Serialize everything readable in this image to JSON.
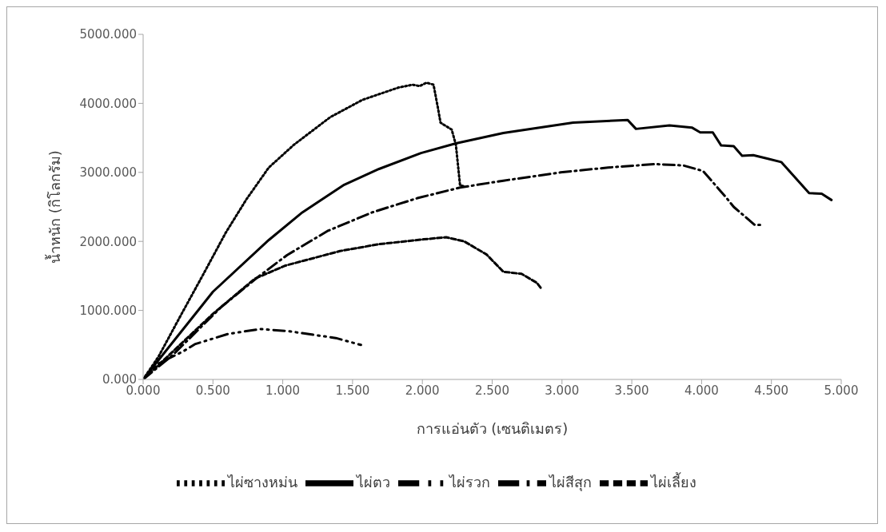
{
  "chart_data": {
    "type": "line",
    "xlabel": "การแอ่นตัว (เซนติเมตร)",
    "ylabel": "น้ำหนัก (กิโลกรัม)",
    "xlim": [
      0,
      5
    ],
    "xticks": [
      {
        "value": 0,
        "label": "0.000"
      },
      {
        "value": 0.5,
        "label": "0.500"
      },
      {
        "value": 1,
        "label": "1.000"
      },
      {
        "value": 1.5,
        "label": "1.500"
      },
      {
        "value": 2,
        "label": "2.000"
      },
      {
        "value": 2.5,
        "label": "2.500"
      },
      {
        "value": 3,
        "label": "3.000"
      },
      {
        "value": 3.5,
        "label": "3.500"
      },
      {
        "value": 4,
        "label": "4.000"
      },
      {
        "value": 4.5,
        "label": "4.500"
      },
      {
        "value": 5,
        "label": "5.000"
      }
    ],
    "ylim": [
      0,
      5000
    ],
    "yticks": [
      {
        "value": 0,
        "label": "0.000"
      },
      {
        "value": 1000,
        "label": "1000.000"
      },
      {
        "value": 2000,
        "label": "2000.000"
      },
      {
        "value": 3000,
        "label": "3000.000"
      },
      {
        "value": 4000,
        "label": "4000.000"
      },
      {
        "value": 5000,
        "label": "5000.000"
      }
    ],
    "grid": false,
    "legend": "bottom",
    "marker": "none",
    "series": [
      {
        "name": "ไผ่ตว",
        "color": "#000000",
        "line_style": "solid",
        "x": [
          0,
          0.5,
          0.9,
          1.14,
          1.44,
          1.69,
          1.99,
          2.24,
          2.58,
          3.08,
          3.47,
          3.53,
          3.77,
          3.93,
          3.99,
          4.08,
          4.14,
          4.23,
          4.29,
          4.37,
          4.47,
          4.57,
          4.77,
          4.86,
          4.93
        ],
        "values": [
          0,
          1270,
          2020,
          2420,
          2820,
          3050,
          3280,
          3420,
          3570,
          3720,
          3760,
          3630,
          3680,
          3650,
          3580,
          3580,
          3390,
          3380,
          3240,
          3250,
          3200,
          3150,
          2700,
          2690,
          2600
        ]
      },
      {
        "name": "ไผ่ซางหม่น",
        "color": "#000000",
        "line_style": "dotted",
        "x": [
          0,
          0.11,
          0.27,
          0.43,
          0.59,
          0.74,
          0.9,
          1.08,
          1.34,
          1.57,
          1.83,
          1.93,
          1.98,
          2.03,
          2.08,
          2.11,
          2.13,
          2.21,
          2.24,
          2.27,
          2.3
        ],
        "values": [
          0,
          330,
          930,
          1520,
          2120,
          2610,
          3070,
          3400,
          3800,
          4050,
          4230,
          4270,
          4250,
          4300,
          4270,
          3950,
          3720,
          3620,
          3400,
          2810,
          2800
        ]
      },
      {
        "name": "ไผ่สีสุก",
        "color": "#000000",
        "line_style": "dashdot",
        "x": [
          0,
          0.21,
          0.56,
          0.82,
          1.03,
          1.32,
          1.64,
          1.97,
          2.27,
          2.58,
          2.99,
          3.33,
          3.67,
          3.87,
          4.01,
          4.17,
          4.23,
          4.38,
          4.44
        ],
        "values": [
          0,
          350,
          1050,
          1480,
          1800,
          2150,
          2420,
          2630,
          2780,
          2880,
          3000,
          3070,
          3120,
          3100,
          3020,
          2650,
          2500,
          2240,
          2240
        ]
      },
      {
        "name": "ไผ่เลี้ยง",
        "color": "#000000",
        "line_style": "dashed",
        "x": [
          0,
          0.5,
          0.8,
          1.02,
          1.41,
          1.69,
          2.01,
          2.17,
          2.3,
          2.46,
          2.58,
          2.71,
          2.82,
          2.85
        ],
        "values": [
          0,
          950,
          1460,
          1650,
          1860,
          1960,
          2030,
          2060,
          2000,
          1810,
          1560,
          1530,
          1400,
          1320
        ]
      },
      {
        "name": "ไผ่รวก",
        "color": "#000000",
        "line_style": "dashdotdot",
        "x": [
          0,
          0.11,
          0.29,
          0.37,
          0.61,
          0.84,
          1.04,
          1.38,
          1.56
        ],
        "values": [
          0,
          230,
          410,
          510,
          660,
          730,
          700,
          600,
          500
        ]
      }
    ]
  }
}
